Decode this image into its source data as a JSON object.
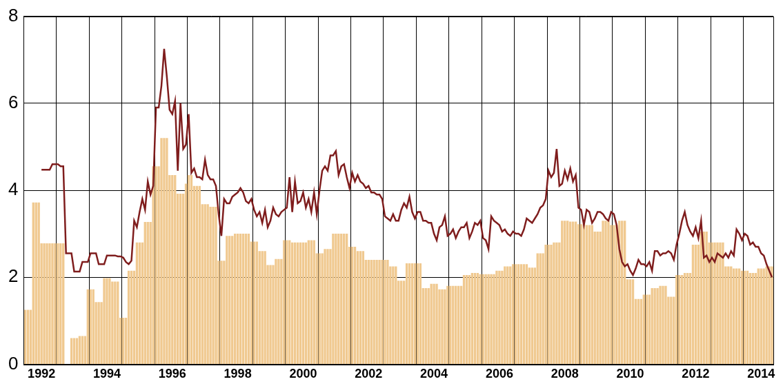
{
  "chart_data": {
    "type": "bar",
    "categories": [
      null,
      null,
      null,
      null,
      null,
      null,
      "1992",
      null,
      null,
      null,
      null,
      null,
      null,
      null,
      null,
      null,
      null,
      null,
      null,
      null,
      null,
      null,
      null,
      null,
      null,
      null,
      null,
      null,
      null,
      null,
      "1994",
      null,
      null,
      null,
      null,
      null,
      null,
      null,
      null,
      null,
      null,
      null,
      null,
      null,
      null,
      null,
      null,
      null,
      null,
      null,
      null,
      null,
      null,
      null,
      "1996",
      null,
      null,
      null,
      null,
      null,
      null,
      null,
      null,
      null,
      null,
      null,
      null,
      null,
      null,
      null,
      null,
      null,
      null,
      null,
      null,
      null,
      null,
      null,
      "1998",
      null,
      null,
      null,
      null,
      null,
      null,
      null,
      null,
      null,
      null,
      null,
      null,
      null,
      null,
      null,
      null,
      null,
      null,
      null,
      null,
      null,
      null,
      null,
      "2000",
      null,
      null,
      null,
      null,
      null,
      null,
      null,
      null,
      null,
      null,
      null,
      null,
      null,
      null,
      null,
      null,
      null,
      null,
      null,
      null,
      null,
      null,
      null,
      "2002",
      null,
      null,
      null,
      null,
      null,
      null,
      null,
      null,
      null,
      null,
      null,
      null,
      null,
      null,
      null,
      null,
      null,
      null,
      null,
      null,
      null,
      null,
      null,
      "2004",
      null,
      null,
      null,
      null,
      null,
      null,
      null,
      null,
      null,
      null,
      null,
      null,
      null,
      null,
      null,
      null,
      null,
      null,
      null,
      null,
      null,
      null,
      null,
      "2006",
      null,
      null,
      null,
      null,
      null,
      null,
      null,
      null,
      null,
      null,
      null,
      null,
      null,
      null,
      null,
      null,
      null,
      null,
      null,
      null,
      null,
      null,
      null,
      "2008",
      null,
      null,
      null,
      null,
      null,
      null,
      null,
      null,
      null,
      null,
      null,
      null,
      null,
      null,
      null,
      null,
      null,
      null,
      null,
      null,
      null,
      null,
      null,
      "2010",
      null,
      null,
      null,
      null,
      null,
      null,
      null,
      null,
      null,
      null,
      null,
      null,
      null,
      null,
      null,
      null,
      null,
      null,
      null,
      null,
      null,
      null,
      null,
      "2012",
      null,
      null,
      null,
      null,
      null,
      null,
      null,
      null,
      null,
      null,
      null,
      null,
      null,
      null,
      null,
      null,
      null,
      null,
      null,
      null,
      null,
      null,
      null,
      "2014",
      null,
      null,
      null,
      null
    ],
    "series": [
      {
        "type": "bar",
        "color": "#f0c990",
        "values": [
          1.25,
          1.25,
          1.25,
          3.72,
          3.72,
          3.72,
          2.78,
          2.78,
          2.78,
          2.78,
          2.78,
          2.78,
          2.78,
          2.78,
          2.78,
          null,
          null,
          0.6,
          0.6,
          0.6,
          0.65,
          0.65,
          0.65,
          1.72,
          1.72,
          1.72,
          1.43,
          1.43,
          1.43,
          1.98,
          1.98,
          1.98,
          1.9,
          1.9,
          1.9,
          1.07,
          1.07,
          1.07,
          2.15,
          2.15,
          2.15,
          2.8,
          2.8,
          2.8,
          3.27,
          3.27,
          3.27,
          4.55,
          4.55,
          4.55,
          5.2,
          5.2,
          5.2,
          4.35,
          4.35,
          4.35,
          3.92,
          3.92,
          3.92,
          4.15,
          4.35,
          4.35,
          4.1,
          4.1,
          4.1,
          3.68,
          3.68,
          3.68,
          3.62,
          3.62,
          3.62,
          2.38,
          2.38,
          2.38,
          2.95,
          2.95,
          2.95,
          3.0,
          3.0,
          3.0,
          3.0,
          3.0,
          3.0,
          2.82,
          2.82,
          2.82,
          2.6,
          2.6,
          2.6,
          2.28,
          2.28,
          2.28,
          2.42,
          2.42,
          2.42,
          2.85,
          2.85,
          2.85,
          2.8,
          2.8,
          2.8,
          2.8,
          2.8,
          2.8,
          2.85,
          2.85,
          2.85,
          2.55,
          2.55,
          2.55,
          2.65,
          2.65,
          2.65,
          3.0,
          3.0,
          3.0,
          3.0,
          3.0,
          3.0,
          2.7,
          2.7,
          2.7,
          2.6,
          2.6,
          2.6,
          2.4,
          2.4,
          2.4,
          2.4,
          2.4,
          2.4,
          2.4,
          2.4,
          2.4,
          2.25,
          2.25,
          2.25,
          1.92,
          1.92,
          1.92,
          2.32,
          2.32,
          2.32,
          2.32,
          2.32,
          2.32,
          1.75,
          1.75,
          1.75,
          1.85,
          1.85,
          1.85,
          1.72,
          1.72,
          1.72,
          1.8,
          1.8,
          1.8,
          1.8,
          1.8,
          1.8,
          2.05,
          2.05,
          2.05,
          2.1,
          2.1,
          2.1,
          2.07,
          2.07,
          2.07,
          2.07,
          2.07,
          2.07,
          2.15,
          2.15,
          2.15,
          2.25,
          2.25,
          2.25,
          2.3,
          2.3,
          2.3,
          2.3,
          2.3,
          2.3,
          2.22,
          2.22,
          2.22,
          2.55,
          2.55,
          2.55,
          2.75,
          2.75,
          2.75,
          2.8,
          2.8,
          2.8,
          3.3,
          3.3,
          3.3,
          3.28,
          3.28,
          3.28,
          3.22,
          3.22,
          3.22,
          3.2,
          3.2,
          3.2,
          3.05,
          3.05,
          3.05,
          3.3,
          3.3,
          3.3,
          3.2,
          3.2,
          3.2,
          3.3,
          3.3,
          3.3,
          1.95,
          1.95,
          1.95,
          1.5,
          1.5,
          1.5,
          1.6,
          1.6,
          1.6,
          1.75,
          1.75,
          1.75,
          1.8,
          1.8,
          1.8,
          1.55,
          1.55,
          1.55,
          2.05,
          2.05,
          2.05,
          2.1,
          2.1,
          2.1,
          2.75,
          2.75,
          2.75,
          3.05,
          3.05,
          3.05,
          2.8,
          2.8,
          2.8,
          2.8,
          2.8,
          2.8,
          2.25,
          2.25,
          2.25,
          2.2,
          2.2,
          2.2,
          2.15,
          2.15,
          2.15,
          2.1,
          2.1,
          2.1,
          2.2,
          2.2,
          2.2,
          2.25,
          2.25,
          2.25
        ]
      },
      {
        "type": "line",
        "color": "#7f1d1d",
        "values": [
          null,
          null,
          null,
          null,
          null,
          null,
          4.47,
          4.47,
          4.47,
          4.47,
          4.6,
          4.6,
          4.6,
          4.55,
          4.55,
          2.55,
          2.55,
          2.55,
          2.13,
          2.13,
          2.13,
          2.35,
          2.35,
          2.35,
          2.55,
          2.55,
          2.55,
          2.3,
          2.3,
          2.3,
          2.5,
          2.5,
          2.5,
          2.5,
          2.48,
          2.48,
          2.45,
          2.35,
          2.3,
          2.38,
          3.3,
          3.15,
          3.5,
          3.8,
          3.55,
          4.2,
          3.9,
          4.1,
          5.9,
          5.9,
          6.4,
          7.25,
          6.6,
          5.85,
          5.75,
          6.05,
          4.45,
          6.0,
          4.95,
          5.05,
          5.75,
          4.4,
          4.5,
          4.3,
          4.3,
          4.25,
          4.7,
          4.35,
          4.25,
          4.25,
          4.1,
          3.45,
          2.95,
          3.8,
          3.7,
          3.7,
          3.85,
          3.9,
          3.95,
          4.05,
          3.95,
          3.75,
          3.7,
          3.8,
          3.55,
          3.4,
          3.5,
          3.25,
          3.55,
          3.15,
          3.3,
          3.6,
          3.45,
          3.4,
          3.5,
          3.55,
          3.6,
          4.3,
          3.5,
          4.2,
          3.7,
          3.75,
          3.95,
          3.6,
          3.8,
          3.5,
          3.95,
          3.45,
          4.0,
          4.45,
          4.55,
          4.45,
          4.8,
          4.8,
          4.9,
          4.35,
          4.55,
          4.6,
          4.3,
          4.05,
          4.4,
          4.2,
          4.35,
          4.2,
          4.15,
          4.05,
          4.1,
          3.95,
          3.95,
          3.9,
          3.9,
          3.8,
          3.4,
          3.35,
          3.3,
          3.45,
          3.3,
          3.3,
          3.55,
          3.7,
          3.6,
          3.85,
          3.5,
          3.35,
          3.5,
          3.5,
          3.3,
          3.3,
          3.25,
          3.25,
          3.0,
          2.85,
          3.15,
          3.2,
          3.4,
          2.95,
          3.0,
          3.1,
          2.9,
          3.05,
          3.15,
          3.15,
          3.25,
          2.9,
          3.05,
          3.25,
          3.2,
          3.3,
          2.9,
          2.85,
          2.65,
          3.4,
          3.3,
          3.25,
          3.2,
          3.05,
          3.1,
          3.0,
          2.95,
          3.05,
          3.0,
          3.0,
          2.95,
          3.1,
          3.35,
          3.3,
          3.25,
          3.35,
          3.45,
          3.6,
          3.65,
          3.8,
          4.45,
          4.3,
          4.4,
          4.95,
          4.1,
          4.15,
          4.45,
          4.25,
          4.5,
          4.2,
          4.35,
          3.6,
          3.55,
          3.2,
          3.55,
          3.5,
          3.25,
          3.35,
          3.5,
          3.5,
          3.45,
          3.35,
          3.3,
          3.5,
          3.45,
          3.2,
          2.65,
          2.35,
          2.25,
          2.3,
          2.15,
          2.05,
          2.2,
          2.4,
          2.3,
          2.3,
          2.25,
          2.35,
          2.15,
          2.6,
          2.6,
          2.5,
          2.55,
          2.55,
          2.6,
          2.55,
          2.4,
          2.75,
          3.0,
          3.3,
          3.5,
          3.2,
          3.05,
          2.95,
          3.15,
          2.9,
          3.3,
          2.45,
          2.5,
          2.35,
          2.45,
          2.35,
          2.55,
          2.5,
          2.45,
          2.55,
          2.45,
          2.6,
          2.5,
          3.1,
          3.0,
          2.85,
          3.0,
          2.95,
          2.75,
          2.8,
          2.7,
          2.7,
          2.55,
          2.5,
          2.3,
          2.15,
          2.0
        ]
      }
    ],
    "ylim": [
      0,
      8
    ],
    "yticks": [
      0,
      2,
      4,
      6,
      8
    ],
    "grid": true
  }
}
